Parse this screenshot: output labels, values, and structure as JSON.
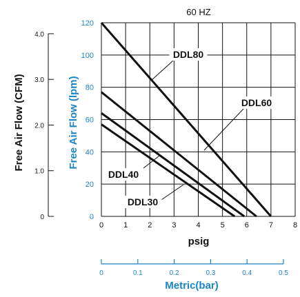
{
  "colors": {
    "black": "#111111",
    "blue": "#1a85c7",
    "white": "#ffffff"
  },
  "chart_data": {
    "type": "line",
    "title": "60 HZ",
    "xlabel": "psig",
    "ylabel": "Free Air Flow (lpm)",
    "xlim": [
      0,
      8
    ],
    "ylim": [
      0,
      120
    ],
    "grid": true,
    "x_ticks": [
      0,
      1,
      2,
      3,
      4,
      5,
      6,
      7,
      8
    ],
    "y_ticks": [
      0,
      20,
      40,
      60,
      80,
      100,
      120
    ],
    "series": [
      {
        "name": "DDL80",
        "x": [
          0,
          7.0
        ],
        "y": [
          120,
          0
        ]
      },
      {
        "name": "DDL60",
        "x": [
          0,
          6.4
        ],
        "y": [
          77,
          0
        ]
      },
      {
        "name": "DDL40",
        "x": [
          0,
          5.9
        ],
        "y": [
          64,
          0
        ]
      },
      {
        "name": "DDL30",
        "x": [
          0,
          5.5
        ],
        "y": [
          57,
          0
        ]
      }
    ],
    "secondary_y_axis": {
      "label": "Free Air Flow (CFM)",
      "ticks": [
        0,
        1.0,
        2.0,
        3.0,
        4.0
      ],
      "tick_labels": [
        "0",
        "1.0",
        "2.0",
        "3.0",
        "4.0"
      ],
      "lpm_per_cfm": 28.3
    },
    "secondary_x_axis": {
      "label": "Metric(bar)",
      "ticks": [
        0,
        0.1,
        0.2,
        0.3,
        0.4,
        0.5
      ],
      "tick_labels": [
        "0",
        "0.1",
        "0.2",
        "0.3",
        "0.4",
        "0.5"
      ]
    }
  }
}
